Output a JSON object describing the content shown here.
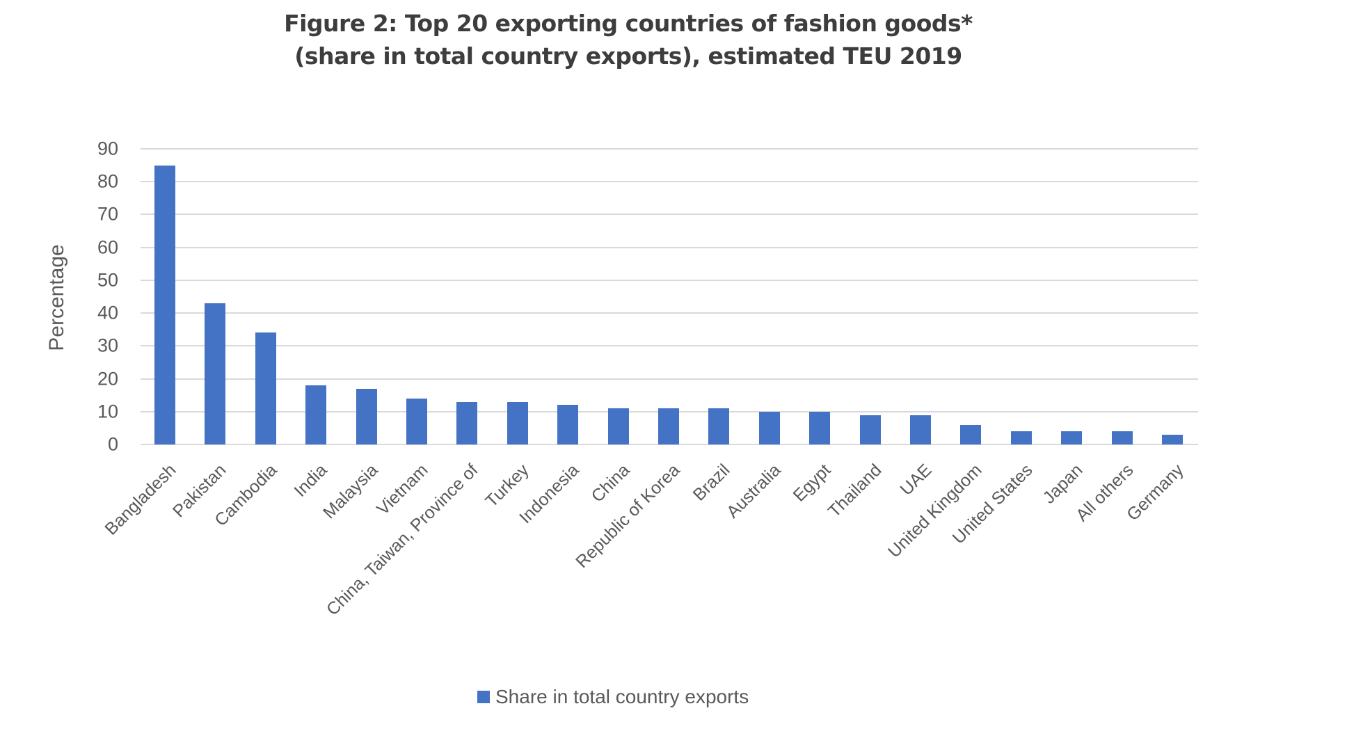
{
  "title_line1": "Figure 2: Top 20 exporting countries of fashion goods*",
  "title_line2": "(share in total country exports), estimated TEU 2019",
  "legend_label": "Share in total country exports",
  "colors": {
    "bar": "#4472c4",
    "grid": "#d9d9d9",
    "text": "#595959",
    "title": "#3d3d3d"
  },
  "chart_data": {
    "type": "bar",
    "title": "Figure 2: Top 20 exporting countries of fashion goods* (share in total country exports), estimated TEU 2019",
    "xlabel": "",
    "ylabel": "Percentage",
    "ylim": [
      0,
      90
    ],
    "yticks": [
      0,
      10,
      20,
      30,
      40,
      50,
      60,
      70,
      80,
      90
    ],
    "grid": true,
    "legend_position": "bottom",
    "categories": [
      "Bangladesh",
      "Pakistan",
      "Cambodia",
      "India",
      "Malaysia",
      "Vietnam",
      "China, Taiwan, Province of",
      "Turkey",
      "Indonesia",
      "China",
      "Republic of Korea",
      "Brazil",
      "Australia",
      "Egypt",
      "Thailand",
      "UAE",
      "United Kingdom",
      "United States",
      "Japan",
      "All others",
      "Germany"
    ],
    "series": [
      {
        "name": "Share in total country exports",
        "values": [
          85,
          43,
          34,
          18,
          17,
          14,
          13,
          13,
          12,
          11,
          11,
          11,
          10,
          10,
          9,
          9,
          6,
          4,
          4,
          4,
          3
        ]
      }
    ]
  }
}
